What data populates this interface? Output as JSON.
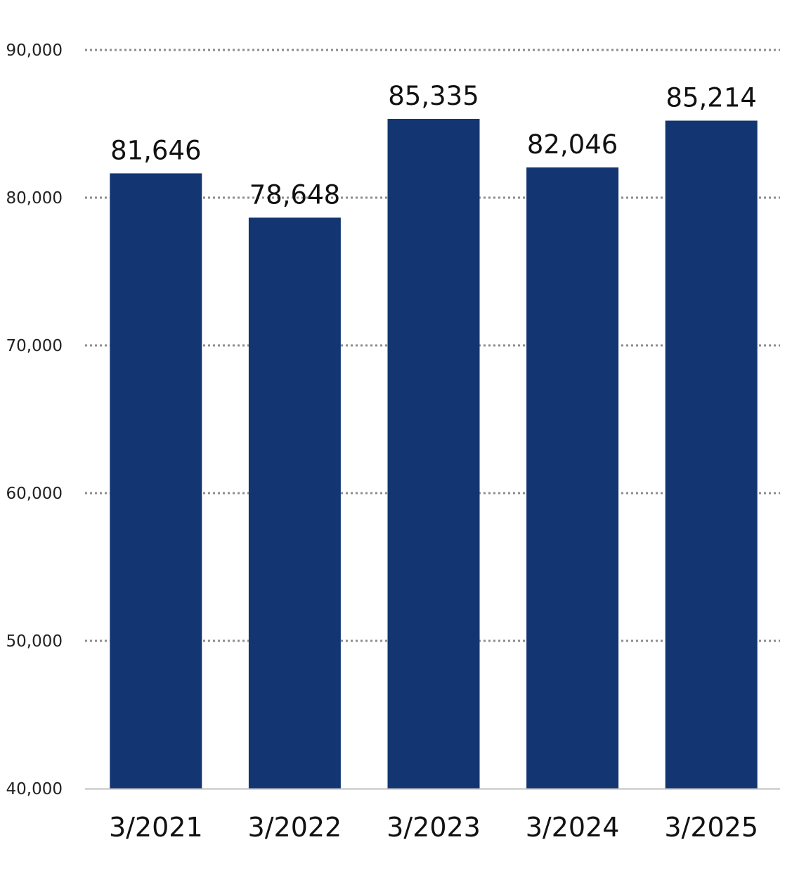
{
  "chart_data": {
    "type": "bar",
    "categories": [
      "3/2021",
      "3/2022",
      "3/2023",
      "3/2024",
      "3/2025"
    ],
    "values": [
      81646,
      78648,
      85335,
      82046,
      85214
    ],
    "data_labels": [
      "81,646",
      "78,648",
      "85,335",
      "82,046",
      "85,214"
    ],
    "ylim": [
      40000,
      90000
    ],
    "yticks": [
      40000,
      50000,
      60000,
      70000,
      80000,
      90000
    ],
    "ytick_labels": [
      "40,000",
      "50,000",
      "60,000",
      "70,000",
      "80,000",
      "90,000"
    ],
    "grid": true,
    "grid_style": "dotted",
    "bar_color": "#133672",
    "grid_color": "#8c8c8c",
    "axis_color": "#bfbfbf"
  }
}
